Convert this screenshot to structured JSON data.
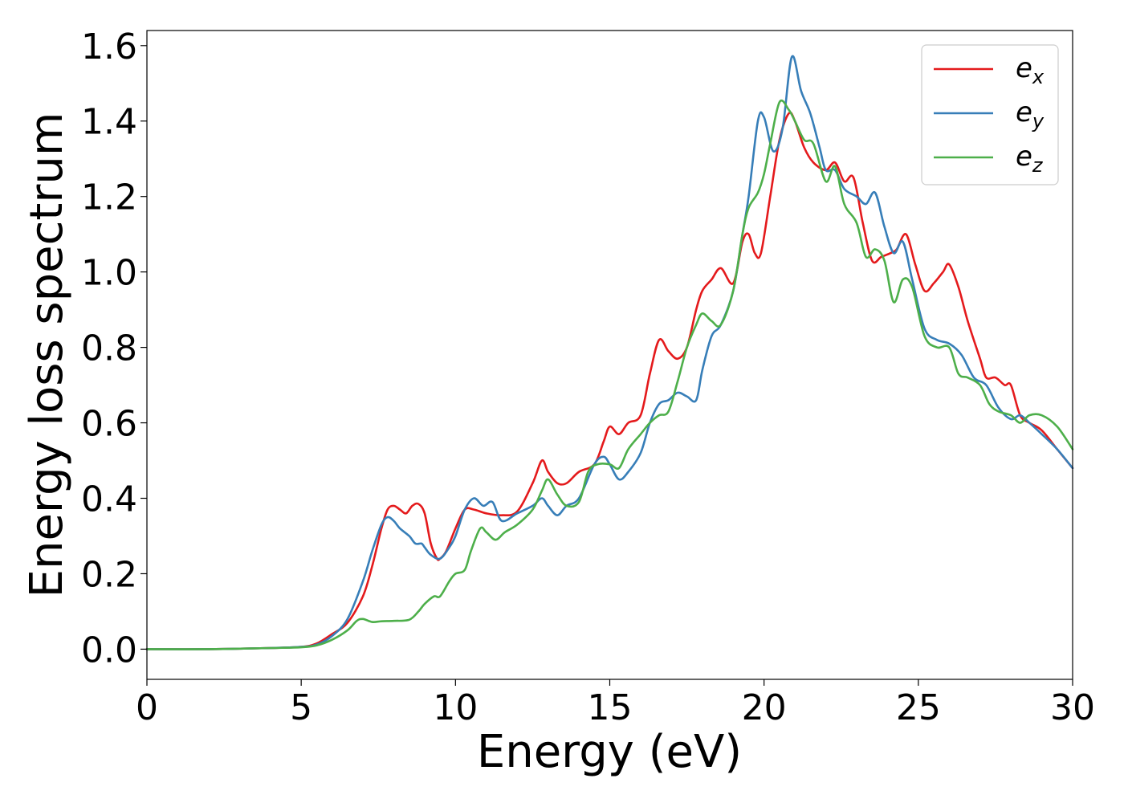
{
  "chart_data": {
    "type": "line",
    "xlabel": "Energy (eV)",
    "ylabel": "Energy loss spectrum",
    "xlim": [
      0,
      30
    ],
    "ylim": [
      -0.08,
      1.64
    ],
    "xticks": [
      "0",
      "5",
      "10",
      "15",
      "20",
      "25",
      "30"
    ],
    "yticks": [
      "0.0",
      "0.2",
      "0.4",
      "0.6",
      "0.8",
      "1.0",
      "1.2",
      "1.4",
      "1.6"
    ],
    "grid": false,
    "legend_position": "top-right",
    "series": [
      {
        "name": "e_x",
        "label_base": "e",
        "label_sub": "x",
        "color": "#e41a1c",
        "x": [
          0,
          2,
          4,
          5,
          5.5,
          6,
          6.5,
          7,
          7.3,
          7.6,
          7.8,
          8,
          8.2,
          8.4,
          8.6,
          8.8,
          9,
          9.2,
          9.4,
          9.5,
          9.7,
          10,
          10.3,
          10.6,
          11,
          11.5,
          12,
          12.5,
          12.8,
          13,
          13.3,
          13.6,
          14,
          14.5,
          14.8,
          15,
          15.3,
          15.6,
          16,
          16.3,
          16.6,
          16.9,
          17.2,
          17.5,
          17.8,
          18,
          18.3,
          18.6,
          19,
          19.3,
          19.5,
          19.7,
          19.9,
          20.2,
          20.5,
          20.8,
          21,
          21.3,
          21.6,
          22,
          22.3,
          22.6,
          22.9,
          23.2,
          23.5,
          23.8,
          24.1,
          24.3,
          24.6,
          24.9,
          25.2,
          25.5,
          25.8,
          26,
          26.3,
          26.6,
          27,
          27.2,
          27.5,
          27.8,
          28,
          28.3,
          28.6,
          29,
          29.5,
          30
        ],
        "y": [
          0.0,
          0.0,
          0.003,
          0.006,
          0.015,
          0.04,
          0.07,
          0.14,
          0.22,
          0.32,
          0.37,
          0.38,
          0.37,
          0.36,
          0.38,
          0.385,
          0.36,
          0.28,
          0.24,
          0.24,
          0.26,
          0.32,
          0.37,
          0.37,
          0.36,
          0.355,
          0.365,
          0.44,
          0.5,
          0.47,
          0.44,
          0.44,
          0.47,
          0.49,
          0.55,
          0.59,
          0.57,
          0.6,
          0.62,
          0.73,
          0.82,
          0.79,
          0.77,
          0.8,
          0.9,
          0.95,
          0.98,
          1.01,
          0.97,
          1.08,
          1.1,
          1.05,
          1.05,
          1.2,
          1.35,
          1.42,
          1.4,
          1.33,
          1.29,
          1.27,
          1.29,
          1.24,
          1.25,
          1.13,
          1.03,
          1.04,
          1.05,
          1.06,
          1.1,
          1.02,
          0.95,
          0.97,
          1.0,
          1.02,
          0.96,
          0.87,
          0.77,
          0.72,
          0.72,
          0.7,
          0.7,
          0.62,
          0.6,
          0.58,
          0.53,
          0.48
        ]
      },
      {
        "name": "e_y",
        "label_base": "e",
        "label_sub": "y",
        "color": "#377eb8",
        "x": [
          0,
          2,
          4,
          5,
          5.5,
          6,
          6.5,
          7,
          7.3,
          7.6,
          7.8,
          8,
          8.2,
          8.5,
          8.7,
          8.9,
          9,
          9.2,
          9.5,
          9.8,
          10,
          10.3,
          10.6,
          10.9,
          11.2,
          11.5,
          12,
          12.5,
          12.8,
          13,
          13.3,
          13.6,
          14,
          14.5,
          14.8,
          15,
          15.3,
          15.6,
          16,
          16.3,
          16.6,
          16.9,
          17.2,
          17.5,
          17.8,
          18,
          18.3,
          18.6,
          19,
          19.3,
          19.5,
          19.8,
          20,
          20.3,
          20.6,
          20.9,
          21.2,
          21.5,
          21.8,
          22,
          22.3,
          22.6,
          23,
          23.3,
          23.6,
          23.9,
          24.2,
          24.5,
          24.8,
          25.2,
          25.6,
          26,
          26.4,
          26.8,
          27.2,
          27.6,
          28,
          28.3,
          28.6,
          29,
          29.5,
          30
        ],
        "y": [
          0.0,
          0.0,
          0.003,
          0.006,
          0.012,
          0.035,
          0.08,
          0.18,
          0.26,
          0.33,
          0.35,
          0.34,
          0.32,
          0.3,
          0.28,
          0.28,
          0.27,
          0.25,
          0.24,
          0.27,
          0.3,
          0.37,
          0.4,
          0.38,
          0.39,
          0.34,
          0.36,
          0.38,
          0.4,
          0.38,
          0.355,
          0.38,
          0.4,
          0.49,
          0.51,
          0.49,
          0.45,
          0.47,
          0.52,
          0.6,
          0.65,
          0.66,
          0.68,
          0.67,
          0.66,
          0.74,
          0.83,
          0.86,
          0.95,
          1.1,
          1.2,
          1.4,
          1.41,
          1.32,
          1.38,
          1.57,
          1.48,
          1.42,
          1.33,
          1.27,
          1.27,
          1.22,
          1.2,
          1.18,
          1.21,
          1.12,
          1.05,
          1.08,
          0.98,
          0.85,
          0.82,
          0.81,
          0.78,
          0.72,
          0.7,
          0.64,
          0.61,
          0.62,
          0.6,
          0.57,
          0.53,
          0.48
        ]
      },
      {
        "name": "e_z",
        "label_base": "e",
        "label_sub": "z",
        "color": "#4daf4a",
        "x": [
          0,
          2,
          4,
          5,
          5.5,
          6,
          6.5,
          6.8,
          7,
          7.3,
          7.6,
          8,
          8.5,
          8.8,
          9,
          9.3,
          9.5,
          9.8,
          10,
          10.3,
          10.5,
          10.8,
          11,
          11.3,
          11.6,
          12,
          12.5,
          12.8,
          13,
          13.3,
          13.6,
          14,
          14.3,
          14.6,
          15,
          15.3,
          15.6,
          16,
          16.3,
          16.6,
          16.9,
          17.2,
          17.5,
          17.8,
          18,
          18.3,
          18.6,
          19,
          19.3,
          19.5,
          19.8,
          20,
          20.2,
          20.5,
          20.8,
          21,
          21.3,
          21.6,
          22,
          22.3,
          22.6,
          23,
          23.3,
          23.6,
          23.9,
          24.2,
          24.5,
          24.8,
          25.2,
          25.6,
          26,
          26.3,
          26.6,
          27,
          27.3,
          27.6,
          28,
          28.3,
          28.6,
          29,
          29.5,
          30
        ],
        "y": [
          0.0,
          0.0,
          0.003,
          0.005,
          0.01,
          0.025,
          0.05,
          0.075,
          0.08,
          0.072,
          0.074,
          0.075,
          0.078,
          0.1,
          0.12,
          0.14,
          0.14,
          0.18,
          0.2,
          0.21,
          0.26,
          0.32,
          0.31,
          0.29,
          0.31,
          0.33,
          0.37,
          0.42,
          0.45,
          0.41,
          0.38,
          0.39,
          0.47,
          0.49,
          0.49,
          0.48,
          0.53,
          0.57,
          0.6,
          0.62,
          0.63,
          0.71,
          0.8,
          0.86,
          0.89,
          0.87,
          0.86,
          0.95,
          1.1,
          1.17,
          1.21,
          1.26,
          1.34,
          1.45,
          1.43,
          1.4,
          1.35,
          1.34,
          1.24,
          1.28,
          1.18,
          1.13,
          1.04,
          1.06,
          1.03,
          0.92,
          0.98,
          0.96,
          0.83,
          0.8,
          0.8,
          0.73,
          0.72,
          0.7,
          0.65,
          0.63,
          0.62,
          0.6,
          0.62,
          0.62,
          0.59,
          0.53
        ]
      }
    ]
  }
}
